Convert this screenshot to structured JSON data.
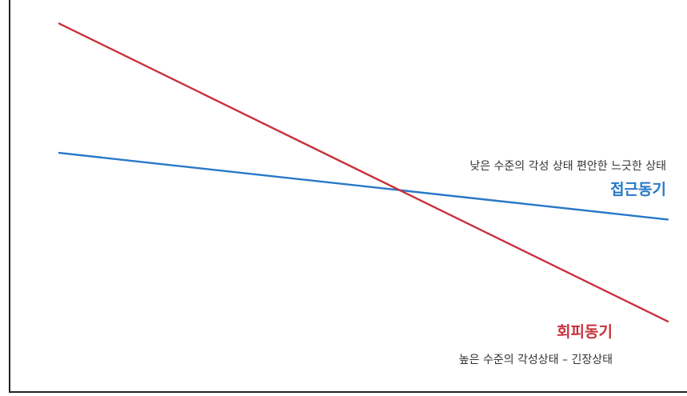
{
  "chart_data": {
    "type": "line",
    "title": "",
    "xlabel": "",
    "ylabel": "",
    "grid": false,
    "axes": {
      "x_ticks": false,
      "y_ticks": false
    },
    "x": [
      0,
      1
    ],
    "series": [
      {
        "id": "approach",
        "name": "접근동기",
        "description": "낮은 수준의 각성 상태 편안한 느긋한 상태",
        "color": "#2878c8",
        "values": [
          0.61,
          0.44
        ]
      },
      {
        "id": "avoidance",
        "name": "회피동기",
        "description": "높은 수준의 각성상태 – 긴장상태",
        "color": "#c8323c",
        "values": [
          0.94,
          0.18
        ]
      }
    ],
    "xlim": [
      0,
      1
    ],
    "ylim": [
      0,
      1
    ]
  }
}
